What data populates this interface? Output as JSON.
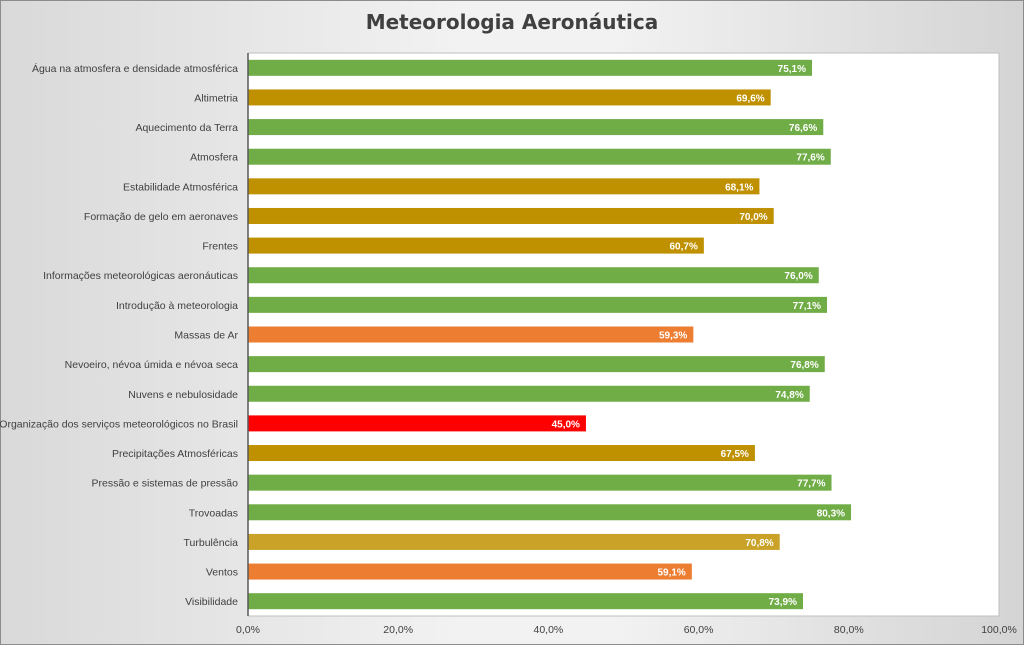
{
  "chart_data": {
    "type": "bar",
    "orientation": "horizontal",
    "title": "Meteorologia Aeronáutica",
    "categories": [
      "Água na atmosfera e densidade atmosférica",
      "Altimetria",
      "Aquecimento da Terra",
      "Atmosfera",
      "Estabilidade Atmosférica",
      "Formação de gelo em aeronaves",
      "Frentes",
      "Informações meteorológicas aeronáuticas",
      "Introdução à meteorologia",
      "Massas de Ar",
      "Nevoeiro, névoa úmida e névoa seca",
      "Nuvens e nebulosidade",
      "Organização dos serviços meteorológicos no Brasil",
      "Precipitações Atmosféricas",
      "Pressão e sistemas de pressão",
      "Trovoadas",
      "Turbulência",
      "Ventos",
      "Visibilidade"
    ],
    "values": [
      75.1,
      69.6,
      76.6,
      77.6,
      68.1,
      70.0,
      60.7,
      76.0,
      77.1,
      59.3,
      76.8,
      74.8,
      45.0,
      67.5,
      77.7,
      80.3,
      70.8,
      59.1,
      73.9
    ],
    "data_labels": [
      "75,1%",
      "69,6%",
      "76,6%",
      "77,6%",
      "68,1%",
      "70,0%",
      "60,7%",
      "76,0%",
      "77,1%",
      "59,3%",
      "76,8%",
      "74,8%",
      "45,0%",
      "67,5%",
      "77,7%",
      "80,3%",
      "70,8%",
      "59,1%",
      "73,9%"
    ],
    "bar_colors": [
      "#70ad47",
      "#bf9000",
      "#70ad47",
      "#70ad47",
      "#bf9000",
      "#bf9000",
      "#bf9000",
      "#70ad47",
      "#70ad47",
      "#ed7d31",
      "#70ad47",
      "#70ad47",
      "#ff0000",
      "#bf9000",
      "#70ad47",
      "#70ad47",
      "#c9a227",
      "#ed7d31",
      "#70ad47"
    ],
    "xlim": [
      0,
      100
    ],
    "x_ticks": [
      "0,0%",
      "20,0%",
      "40,0%",
      "60,0%",
      "80,0%",
      "100,0%"
    ],
    "x_tick_values": [
      0,
      20,
      40,
      60,
      80,
      100
    ],
    "grid": false,
    "legend": "none"
  }
}
